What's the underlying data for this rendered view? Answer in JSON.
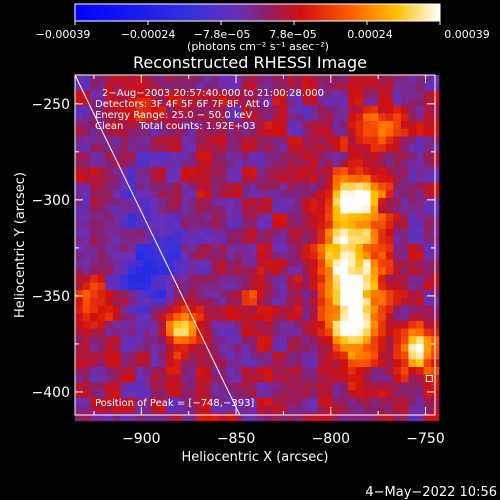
{
  "chart_data": {
    "type": "heatmap",
    "title": "Reconstructed RHESSI Image",
    "xlabel": "Heliocentric X (arcsec)",
    "ylabel": "Heliocentric Y (arcsec)",
    "xlim": [
      -935,
      -745
    ],
    "ylim": [
      -412,
      -235
    ],
    "x_ticks": [
      -900,
      -850,
      -800,
      -750
    ],
    "y_ticks": [
      -250,
      -300,
      -350,
      -400
    ],
    "x_tick_labels": [
      "−900",
      "−850",
      "−800",
      "−750"
    ],
    "y_tick_labels": [
      "−250",
      "−300",
      "−350",
      "−400"
    ],
    "colorbar": {
      "range": [
        -0.00039,
        0.00039
      ],
      "tick_labels": [
        "−0.00039",
        "−0.00024",
        "−7.8e−05",
        "7.8e−05",
        "0.00024",
        "0.00039"
      ],
      "unit_label": "(photons cm⁻² s⁻¹ asec⁻²)"
    },
    "info_lines": [
      "2−Aug−2003 20:57:40.000 to 21:00:28.000",
      "Detectors: 3F 4F 5F 6F 7F 8F, Att 0",
      "Energy Range: 25.0 − 50.0 keV",
      "Clean     Total counts: 1.92E+03"
    ],
    "peak_label": "Position of Peak = [−748,−393]",
    "peak_position": [
      -748,
      -393
    ],
    "limb_line": {
      "from": [
        -935,
        -233
      ],
      "to": [
        -848,
        -412
      ]
    },
    "sources": [
      {
        "x": -790,
        "y": -330,
        "sx": 11,
        "sy": 22,
        "amp": 0.00036
      },
      {
        "x": -787,
        "y": -365,
        "sx": 9,
        "sy": 14,
        "amp": 0.00034
      },
      {
        "x": -786,
        "y": -298,
        "sx": 9,
        "sy": 8,
        "amp": 0.0003
      },
      {
        "x": -878,
        "y": -368,
        "sx": 7,
        "sy": 9,
        "amp": 0.00028
      },
      {
        "x": -752,
        "y": -378,
        "sx": 8,
        "sy": 9,
        "amp": 0.0003
      },
      {
        "x": -775,
        "y": -265,
        "sx": 10,
        "sy": 9,
        "amp": 0.00016
      },
      {
        "x": -840,
        "y": -345,
        "sx": 6,
        "sy": 7,
        "amp": 0.00013
      },
      {
        "x": -925,
        "y": -352,
        "sx": 7,
        "sy": 10,
        "amp": 0.00015
      },
      {
        "x": -900,
        "y": -255,
        "sx": 6,
        "sy": 6,
        "amp": 0.0001
      },
      {
        "x": -895,
        "y": -338,
        "sx": 12,
        "sy": 14,
        "amp": -0.00022
      },
      {
        "x": -900,
        "y": -300,
        "sx": 10,
        "sy": 10,
        "amp": -0.00012
      }
    ]
  },
  "footer": {
    "date": "4−May−2022 10:56"
  }
}
